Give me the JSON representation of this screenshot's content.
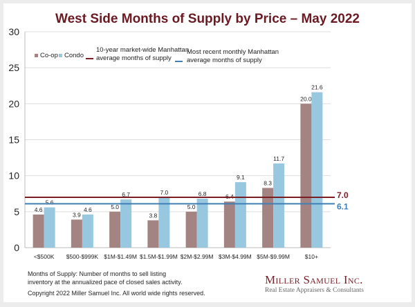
{
  "chart_data": {
    "type": "bar",
    "title": "West Side Months of Supply by Price – May 2022",
    "xlabel": "",
    "ylabel": "",
    "ylim": [
      0,
      30
    ],
    "yticks": [
      0,
      5,
      10,
      15,
      20,
      25,
      30
    ],
    "grid": true,
    "legend_position": "top-left",
    "categories": [
      "<$500K",
      "$500-$999K",
      "$1M-$1.49M",
      "$1.5M-$1.99M",
      "$2M-$2.99M",
      "$3M-$4.99M",
      "$5M-$9.99M",
      "$10+"
    ],
    "series": [
      {
        "name": "Co-op",
        "color": "#a48383",
        "values": [
          4.6,
          3.9,
          5.0,
          3.8,
          5.0,
          6.4,
          8.3,
          20.0
        ]
      },
      {
        "name": "Condo",
        "color": "#97c8e0",
        "values": [
          5.6,
          4.6,
          6.7,
          7.0,
          6.8,
          9.1,
          11.7,
          21.6
        ]
      }
    ],
    "reference_lines": [
      {
        "name": "10-year market-wide Manhattan average months of supply",
        "line1": "10-year market-wide Manhattan",
        "line2": "average months of supply",
        "value": 7.0,
        "label": "7.0",
        "color": "#7a1c24"
      },
      {
        "name": "Most recent monthly Manhattan average months of supply",
        "line1": "Most recent monthly Manhattan",
        "line2": "average months of supply",
        "value": 6.1,
        "label": "6.1",
        "color": "#3f7fb6"
      }
    ]
  },
  "footer": {
    "definition_line1": "Months of Supply: Number of months to sell listing",
    "definition_line2": "inventory at the annualized pace of closed sales activity.",
    "copyright": "Copyright 2022 Miller Samuel Inc.  All world wide rights reserved."
  },
  "logo": {
    "name": "Miller Samuel Inc.",
    "tagline": "Real Estate Appraisers & Consultants"
  }
}
